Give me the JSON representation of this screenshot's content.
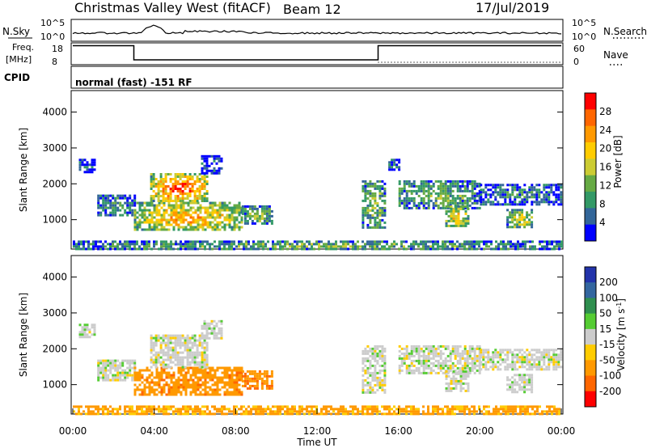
{
  "header": {
    "station": "Christmas Valley West (fitACF)",
    "beam": "Beam 12",
    "date": "17/Jul/2019"
  },
  "noise_panel": {
    "left_label": "N.Sky",
    "right_label": "N.Search",
    "ticks": [
      "10^5",
      "10^0"
    ]
  },
  "freq_panel": {
    "left_label_line1": "Freq.",
    "left_label_line2": "[MHz]",
    "right_label": "Nave",
    "left_ticks": [
      "18",
      "8"
    ],
    "right_ticks": [
      "60",
      "0"
    ]
  },
  "cpid_panel": {
    "label": "CPID",
    "mode_text": "normal (fast) -151 RF"
  },
  "chart_data": [
    {
      "type": "heatmap",
      "name": "power",
      "ylabel": "Slant Range [km]",
      "yticks": [
        "4000",
        "3000",
        "2000",
        "1000"
      ],
      "colorbar_label": "Power [dB]",
      "colorbar_ticks": [
        "28",
        "24",
        "20",
        "16",
        "12",
        "8",
        "4"
      ],
      "colorbar_colors": [
        "#ff0000",
        "#ff6600",
        "#ff9900",
        "#ffcc00",
        "#cccc33",
        "#66aa44",
        "#339966",
        "#336699",
        "#0000ff"
      ],
      "regions": [
        {
          "t0": 0.3,
          "t1": 1.1,
          "r0": 2300,
          "r1": 2700,
          "level": 0.15
        },
        {
          "t0": 1.2,
          "t1": 3.0,
          "r0": 1100,
          "r1": 1700,
          "level": 0.3
        },
        {
          "t0": 3.0,
          "t1": 8.3,
          "r0": 700,
          "r1": 1500,
          "level": 0.75
        },
        {
          "t0": 3.8,
          "t1": 6.6,
          "r0": 1500,
          "r1": 2300,
          "level": 0.95
        },
        {
          "t0": 6.3,
          "t1": 7.3,
          "r0": 2300,
          "r1": 2800,
          "level": 0.15
        },
        {
          "t0": 8.3,
          "t1": 9.8,
          "r0": 900,
          "r1": 1400,
          "level": 0.45
        },
        {
          "t0": 14.2,
          "t1": 15.3,
          "r0": 800,
          "r1": 2100,
          "level": 0.45
        },
        {
          "t0": 15.5,
          "t1": 16.0,
          "r0": 2400,
          "r1": 2700,
          "level": 0.15
        },
        {
          "t0": 16.0,
          "t1": 20.0,
          "r0": 1300,
          "r1": 2100,
          "level": 0.4
        },
        {
          "t0": 18.3,
          "t1": 19.4,
          "r0": 800,
          "r1": 1400,
          "level": 0.7
        },
        {
          "t0": 20.0,
          "t1": 24.0,
          "r0": 1400,
          "r1": 2000,
          "level": 0.25
        },
        {
          "t0": 21.3,
          "t1": 22.6,
          "r0": 800,
          "r1": 1300,
          "level": 0.6
        },
        {
          "t0": 0.0,
          "t1": 24.0,
          "r0": 180,
          "r1": 420,
          "level": 0.4
        }
      ]
    },
    {
      "type": "heatmap",
      "name": "velocity",
      "ylabel": "Slant Range [km]",
      "yticks": [
        "4000",
        "3000",
        "2000",
        "1000"
      ],
      "colorbar_label": "Velocity [m s",
      "colorbar_label_sup": "-1",
      "colorbar_label_end": "]",
      "colorbar_ticks": [
        "200",
        "100",
        "50",
        "15",
        "-15",
        "-50",
        "-100",
        "-200"
      ],
      "colorbar_colors": [
        "#2233aa",
        "#33669f",
        "#2f8f4f",
        "#55cc33",
        "#cccccc",
        "#ffcc00",
        "#ff9900",
        "#ff6600",
        "#ff0000"
      ],
      "regions": [
        {
          "t0": 0.3,
          "t1": 1.1,
          "r0": 2300,
          "r1": 2700,
          "v": 0
        },
        {
          "t0": 1.2,
          "t1": 3.0,
          "r0": 1100,
          "r1": 1700,
          "v": 0
        },
        {
          "t0": 3.0,
          "t1": 8.3,
          "r0": 700,
          "r1": 1500,
          "v": -60
        },
        {
          "t0": 3.8,
          "t1": 6.6,
          "r0": 1500,
          "r1": 2400,
          "v": 0
        },
        {
          "t0": 6.3,
          "t1": 7.3,
          "r0": 2300,
          "r1": 2800,
          "v": 0
        },
        {
          "t0": 8.3,
          "t1": 9.8,
          "r0": 900,
          "r1": 1400,
          "v": -70
        },
        {
          "t0": 14.2,
          "t1": 15.3,
          "r0": 800,
          "r1": 2100,
          "v": 0
        },
        {
          "t0": 16.0,
          "t1": 20.0,
          "r0": 1300,
          "r1": 2100,
          "v": 0
        },
        {
          "t0": 18.3,
          "t1": 19.4,
          "r0": 800,
          "r1": 1400,
          "v": 0
        },
        {
          "t0": 20.0,
          "t1": 24.0,
          "r0": 1400,
          "r1": 2000,
          "v": 0
        },
        {
          "t0": 21.3,
          "t1": 22.6,
          "r0": 800,
          "r1": 1300,
          "v": 0
        },
        {
          "t0": 0.0,
          "t1": 24.0,
          "r0": 180,
          "r1": 420,
          "v": -40
        }
      ]
    }
  ],
  "xaxis": {
    "label": "Time UT",
    "ticks": [
      "00:00",
      "04:00",
      "08:00",
      "12:00",
      "16:00",
      "20:00",
      "00:00"
    ]
  },
  "frequency_steps": [
    {
      "t0": 0.0,
      "t1": 3.0,
      "f": 17
    },
    {
      "t0": 3.0,
      "t1": 15.0,
      "f": 10
    },
    {
      "t0": 15.0,
      "t1": 24.0,
      "f": 17
    }
  ]
}
